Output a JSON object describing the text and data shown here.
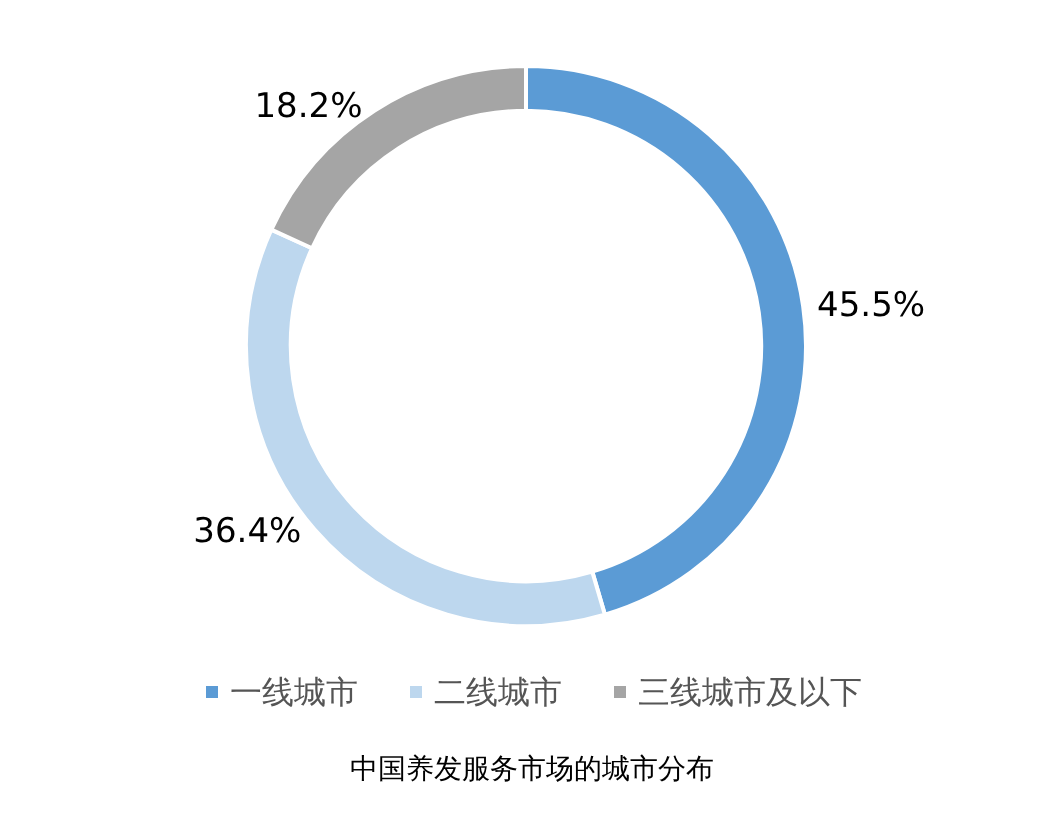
{
  "chart_data": {
    "type": "donut",
    "title": "中国养发服务市场的城市分布",
    "categories": [
      "一线城市",
      "二线城市",
      "三线城市及以下"
    ],
    "values": [
      45.5,
      36.4,
      18.2
    ],
    "colors": [
      "#5b9bd5",
      "#bdd7ee",
      "#a5a5a5"
    ],
    "value_labels": [
      "45.5%",
      "36.4%",
      "18.2%"
    ],
    "legend": "bottom"
  }
}
